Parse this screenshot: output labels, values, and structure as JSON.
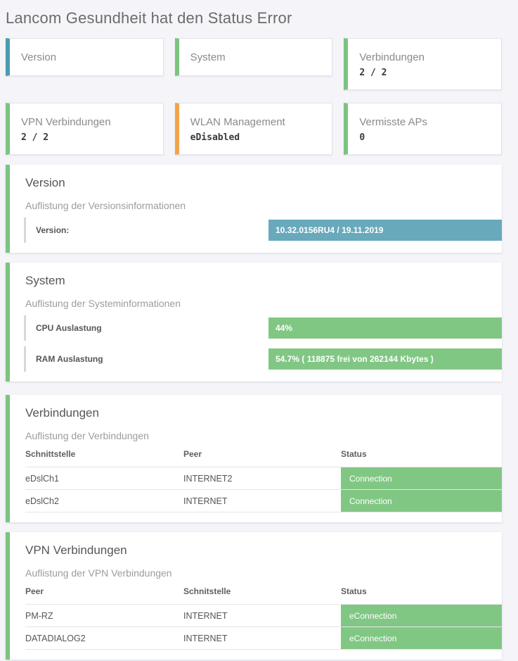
{
  "page": {
    "title": "Lancom Gesundheit hat den Status Error"
  },
  "colors": {
    "accent_teal": "#4a9bb1",
    "accent_green": "#7cc47f",
    "accent_orange": "#f2a44a",
    "bar_teal": "#68a9bc",
    "bar_green": "#81c784"
  },
  "stat_cards": [
    {
      "label": "Version",
      "accent": "teal"
    },
    {
      "label": "System",
      "accent": "green"
    },
    {
      "label": "Verbindungen",
      "value": "2 / 2",
      "accent": "green"
    },
    {
      "label": "VPN Verbindungen",
      "value": "2 / 2",
      "accent": "green"
    },
    {
      "label": "WLAN Management",
      "value": "eDisabled",
      "accent": "orange"
    },
    {
      "label": "Vermisste APs",
      "value": "0",
      "accent": "green"
    }
  ],
  "sections": {
    "version": {
      "title": "Version",
      "subtitle": "Auflistung der Versionsinformationen",
      "rows": [
        {
          "label": "Version:",
          "value": "10.32.0156RU4 / 19.11.2019"
        }
      ]
    },
    "system": {
      "title": "System",
      "subtitle": "Auflistung der Systeminformationen",
      "rows": [
        {
          "label": "CPU Auslastung",
          "value": "44%"
        },
        {
          "label": "RAM Auslastung",
          "value": "54.7% ( 118875 frei von 262144 Kbytes )"
        }
      ]
    },
    "connections": {
      "title": "Verbindungen",
      "subtitle": "Auflistung der Verbindungen",
      "columns": [
        "Schnittstelle",
        "Peer",
        "Status"
      ],
      "rows": [
        {
          "col1": "eDslCh1",
          "col2": "INTERNET2",
          "status": "Connection"
        },
        {
          "col1": "eDslCh2",
          "col2": "INTERNET",
          "status": "Connection"
        }
      ]
    },
    "vpn": {
      "title": "VPN Verbindungen",
      "subtitle": "Auflistung der VPN Verbindungen",
      "columns": [
        "Peer",
        "Schnitstelle",
        "Status"
      ],
      "rows": [
        {
          "col1": "PM-RZ",
          "col2": "INTERNET",
          "status": "eConnection"
        },
        {
          "col1": "DATADIALOG2",
          "col2": "INTERNET",
          "status": "eConnection"
        }
      ]
    }
  }
}
